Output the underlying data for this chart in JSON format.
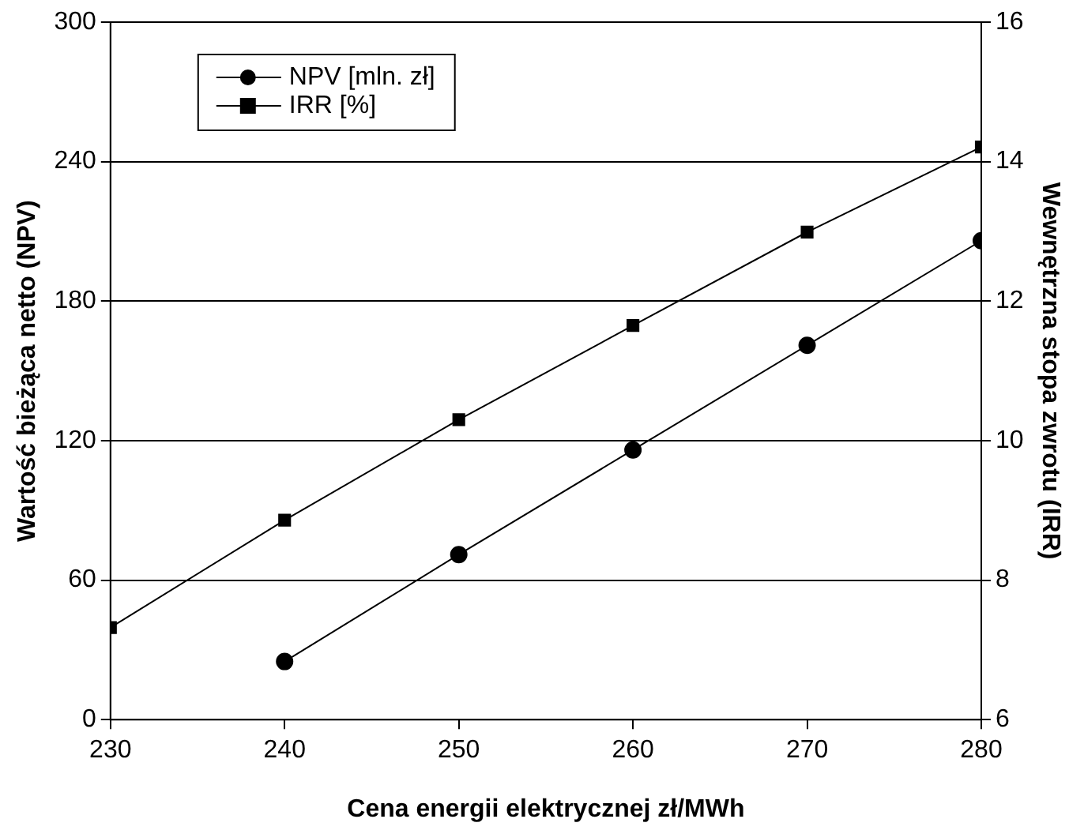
{
  "chart_data": {
    "type": "line",
    "xlabel": "Cena energii elektrycznej zł/MWh",
    "ylabel": "Wartość bieżąca netto (NPV)",
    "y2label": "Wewnętrzna stopa zwrotu (IRR)",
    "x": [
      230,
      240,
      250,
      260,
      270,
      280
    ],
    "xlim": [
      230,
      280
    ],
    "xticks": [
      230,
      240,
      250,
      260,
      270,
      280
    ],
    "ylim": [
      0,
      300
    ],
    "yticks": [
      0,
      60,
      120,
      180,
      240,
      300
    ],
    "y2lim": [
      6,
      16
    ],
    "y2ticks": [
      6,
      8,
      10,
      12,
      14,
      16
    ],
    "grid": "y",
    "legend": "top left",
    "line_style": "solid",
    "series": [
      {
        "name": "NPV [mln. zł]",
        "color": "#000000",
        "marker": "circle",
        "x": [
          240,
          250,
          260,
          270,
          280
        ],
        "values": [
          25,
          71,
          116,
          161,
          206
        ]
      },
      {
        "name": "IRR [%]",
        "color": "#000000",
        "marker": "square",
        "axis": "y2",
        "values": [
          7.32,
          8.86,
          10.3,
          11.65,
          12.99,
          14.21
        ]
      }
    ]
  }
}
